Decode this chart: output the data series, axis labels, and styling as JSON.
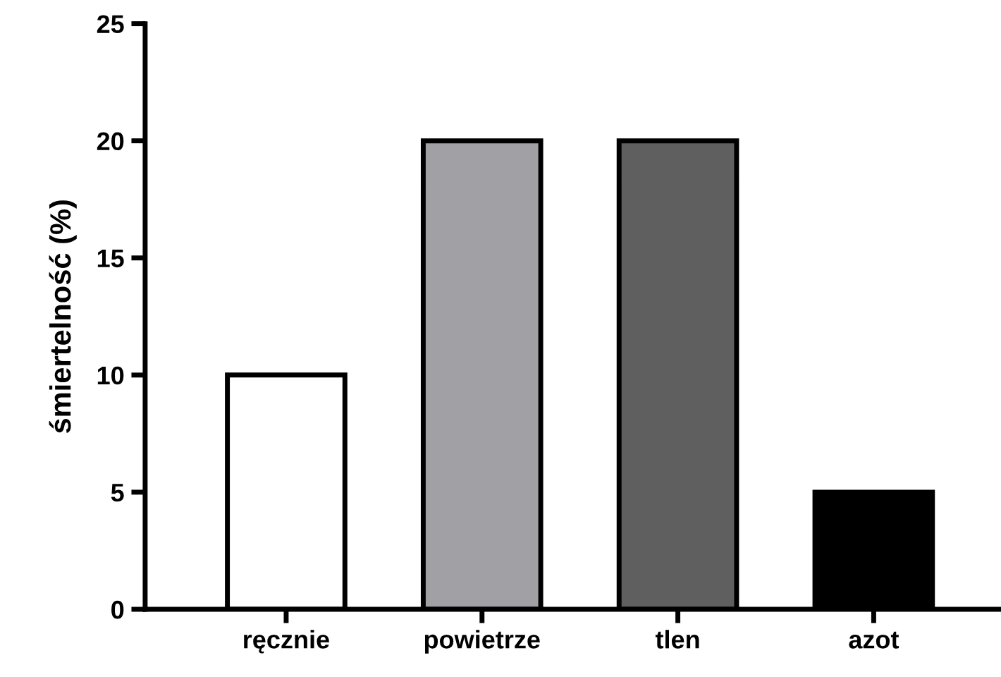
{
  "chart_data": {
    "type": "bar",
    "ylabel": "śmiertelność (%)",
    "categories": [
      "ręcznie",
      "powietrze",
      "tlen",
      "azot"
    ],
    "values": [
      10,
      20,
      20,
      5
    ],
    "colors": [
      "#ffffff",
      "#a1a0a5",
      "#5f5f5f",
      "#000000"
    ],
    "ylim": [
      0,
      25
    ],
    "yticks": [
      0,
      5,
      10,
      15,
      20,
      25
    ],
    "grid": false,
    "legend": false
  }
}
